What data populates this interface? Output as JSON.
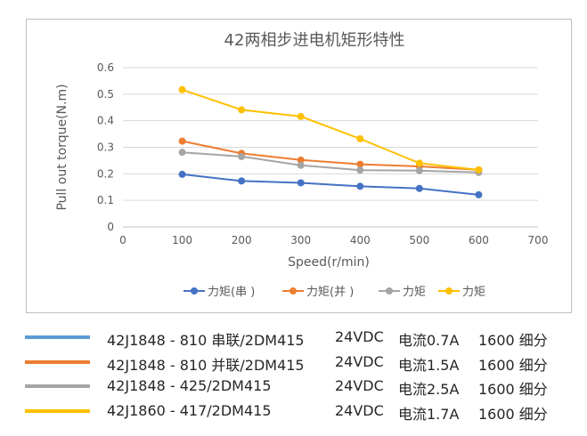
{
  "chart_data": {
    "type": "line",
    "title": "42两相步进电机矩形特性",
    "xlabel": "Speed(r/min)",
    "ylabel": "Pull out torque(N.m)",
    "xlim": [
      0,
      700
    ],
    "ylim": [
      0,
      0.6
    ],
    "x_ticks": [
      "0",
      "100",
      "200",
      "300",
      "400",
      "500",
      "600",
      "700"
    ],
    "y_ticks": [
      "0",
      "0.1",
      "0.2",
      "0.3",
      "0.4",
      "0.5",
      "0.6"
    ],
    "x_tick_values": [
      0,
      100,
      200,
      300,
      400,
      500,
      600,
      700
    ],
    "y_tick_values": [
      0,
      0.1,
      0.2,
      0.3,
      0.4,
      0.5,
      0.6
    ],
    "grid": true,
    "legend_position": "bottom",
    "x": [
      100,
      200,
      300,
      400,
      500,
      600
    ],
    "series": [
      {
        "name": "力矩(串 )",
        "color": "#4472c4",
        "values": [
          0.198,
          0.173,
          0.166,
          0.153,
          0.145,
          0.121
        ]
      },
      {
        "name": "力矩(并 )",
        "color": "#ed7d31",
        "values": [
          0.323,
          0.277,
          0.252,
          0.236,
          0.228,
          0.215
        ]
      },
      {
        "name": "力矩",
        "color": "#a5a5a5",
        "values": [
          0.281,
          0.265,
          0.232,
          0.214,
          0.212,
          0.205
        ]
      },
      {
        "name": "力矩",
        "color": "#ffc000",
        "values": [
          0.517,
          0.441,
          0.416,
          0.332,
          0.24,
          0.215
        ]
      }
    ]
  },
  "notes": [
    {
      "color": "#5b9bd5",
      "model": "42J1848 - 810 串联/2DM415",
      "voltage": "24VDC",
      "current": "电流0.7A",
      "microstep": "1600 细分"
    },
    {
      "color": "#ed7d31",
      "model": "42J1848 - 810 并联/2DM415",
      "voltage": "24VDC",
      "current": "电流1.5A",
      "microstep": "1600 细分"
    },
    {
      "color": "#a5a5a5",
      "model": "42J1848 - 425/2DM415",
      "voltage": "24VDC",
      "current": "电流2.5A",
      "microstep": "1600 细分"
    },
    {
      "color": "#ffc000",
      "model": "42J1860 - 417/2DM415",
      "voltage": "24VDC",
      "current": "电流1.7A",
      "microstep": "1600 细分"
    }
  ]
}
